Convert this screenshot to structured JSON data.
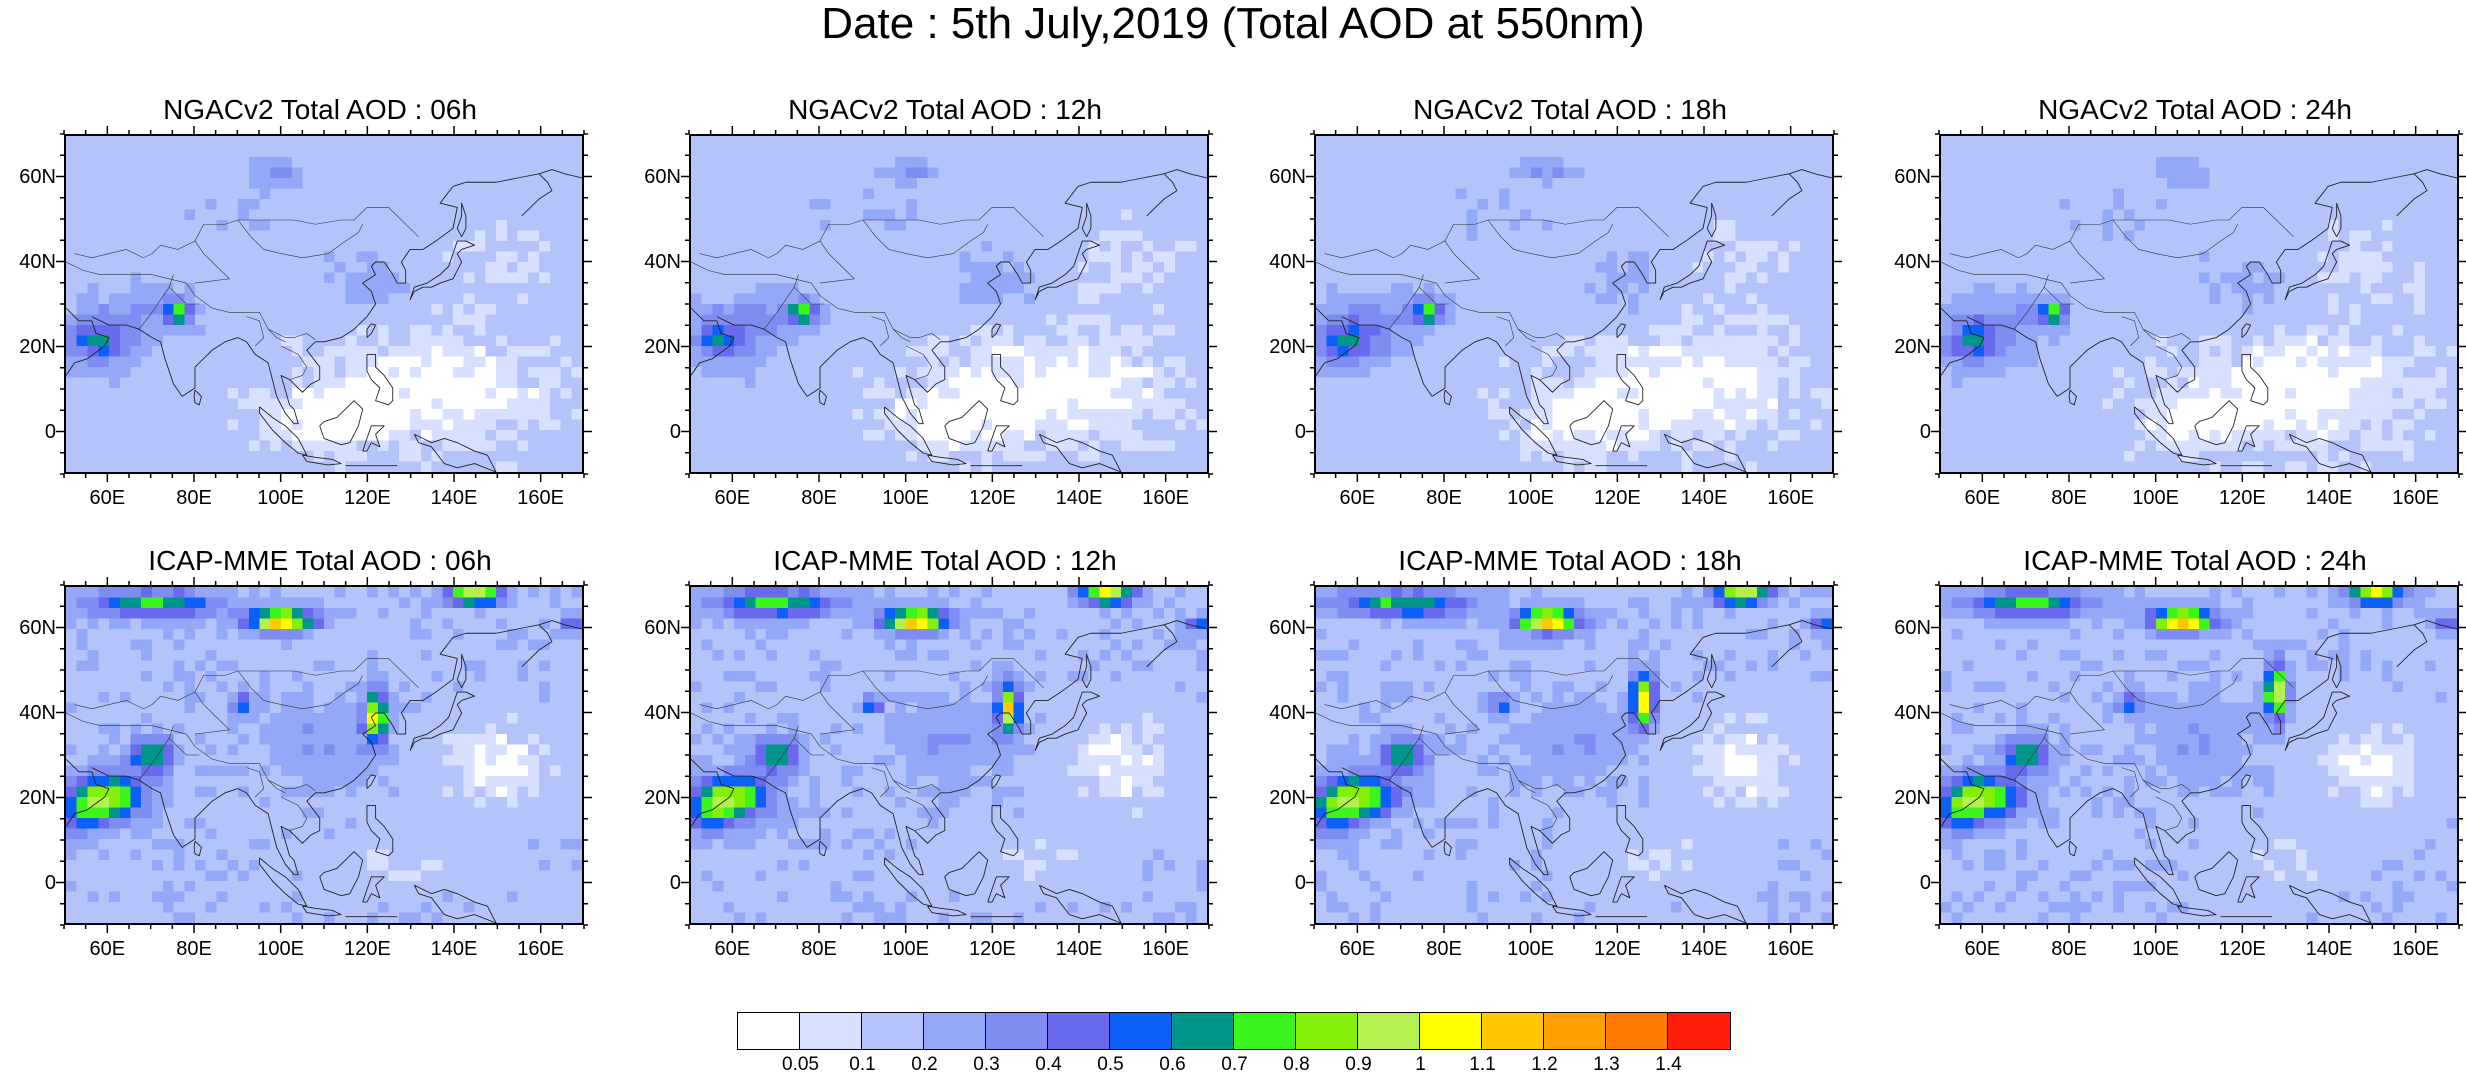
{
  "title": "Date : 5th July,2019 (Total AOD at 550nm)",
  "panels": [
    {
      "title": "NGACv2 Total AOD : 06h",
      "model": "ngac"
    },
    {
      "title": "NGACv2 Total AOD : 12h",
      "model": "ngac"
    },
    {
      "title": "NGACv2 Total AOD : 18h",
      "model": "ngac"
    },
    {
      "title": "NGACv2 Total AOD : 24h",
      "model": "ngac"
    },
    {
      "title": "ICAP-MME Total AOD : 06h",
      "model": "icap"
    },
    {
      "title": "ICAP-MME Total AOD : 12h",
      "model": "icap"
    },
    {
      "title": "ICAP-MME Total AOD : 18h",
      "model": "icap"
    },
    {
      "title": "ICAP-MME Total AOD : 24h",
      "model": "icap"
    }
  ],
  "axes": {
    "lon_range": [
      50,
      170
    ],
    "lat_range": [
      -10,
      70
    ],
    "x_ticks": [
      {
        "value": 60,
        "label": "60E"
      },
      {
        "value": 80,
        "label": "80E"
      },
      {
        "value": 100,
        "label": "100E"
      },
      {
        "value": 120,
        "label": "120E"
      },
      {
        "value": 140,
        "label": "140E"
      },
      {
        "value": 160,
        "label": "160E"
      }
    ],
    "y_ticks": [
      {
        "value": 60,
        "label": "60N"
      },
      {
        "value": 40,
        "label": "40N"
      },
      {
        "value": 20,
        "label": "20N"
      },
      {
        "value": 0,
        "label": "0"
      }
    ]
  },
  "colorbar": {
    "labels": [
      "0.05",
      "0.1",
      "0.2",
      "0.3",
      "0.4",
      "0.5",
      "0.6",
      "0.7",
      "0.8",
      "0.9",
      "1",
      "1.1",
      "1.2",
      "1.3",
      "1.4"
    ],
    "colors": [
      "#ffffff",
      "#d7e0ff",
      "#b4c3fa",
      "#95a8f7",
      "#7f8df2",
      "#6a6aee",
      "#0c5ff7",
      "#00968c",
      "#3cf51d",
      "#84f00a",
      "#b4f050",
      "#ffff00",
      "#ffc800",
      "#ffa000",
      "#ff7a00",
      "#ff1e0a"
    ]
  }
}
